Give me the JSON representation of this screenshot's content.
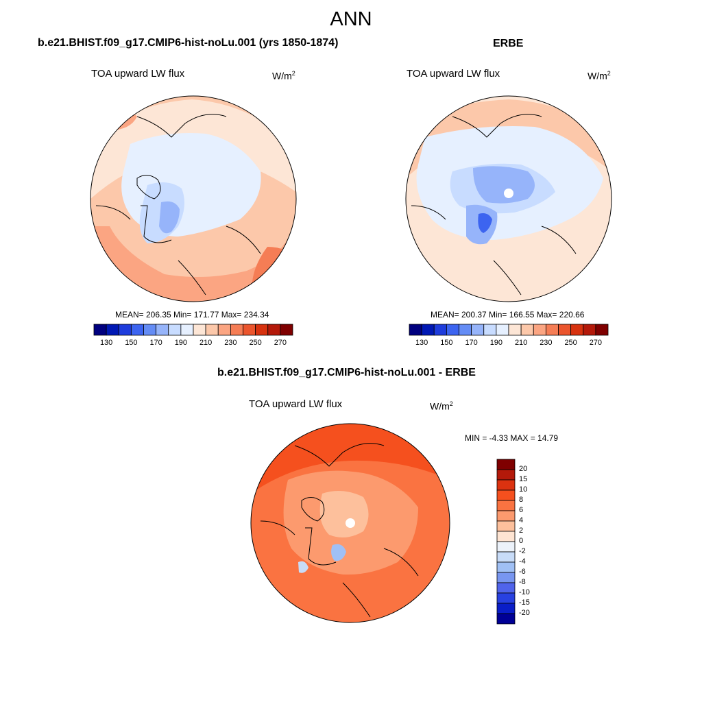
{
  "figure": {
    "title": "ANN"
  },
  "panels": {
    "model": {
      "title": "b.e21.BHIST.f09_g17.CMIP6-hist-noLu.001 (yrs 1850-1874)",
      "variable": "TOA upward LW flux",
      "units": "W/m",
      "units_sup": "2",
      "stats": "MEAN= 206.35  Min= 171.77  Max= 234.34",
      "stats_values": {
        "mean": 206.35,
        "min": 171.77,
        "max": 234.34
      }
    },
    "obs": {
      "title": "ERBE",
      "variable": "TOA upward LW flux",
      "units": "W/m",
      "units_sup": "2",
      "stats": "MEAN= 200.37  Min= 166.55  Max= 220.66",
      "stats_values": {
        "mean": 200.37,
        "min": 166.55,
        "max": 220.66
      }
    },
    "diff": {
      "title": "b.e21.BHIST.f09_g17.CMIP6-hist-noLu.001 - ERBE",
      "variable": "TOA upward LW flux",
      "units": "W/m",
      "units_sup": "2",
      "stats": "MIN =  -4.33 MAX =  14.79",
      "stats_values": {
        "min": -4.33,
        "max": 14.79
      }
    }
  },
  "colorbars": {
    "absolute": {
      "orientation": "horizontal",
      "colors": [
        "#00007f",
        "#0018b4",
        "#1e3cdc",
        "#3c64f0",
        "#648cf5",
        "#96b4fa",
        "#c8dcff",
        "#e6f0ff",
        "#fde6d6",
        "#fcc8aa",
        "#fba582",
        "#f57d55",
        "#eb552d",
        "#d7320f",
        "#b4190a",
        "#7f0000"
      ],
      "tick_labels": [
        "130",
        "150",
        "170",
        "190",
        "210",
        "230",
        "250",
        "270"
      ],
      "tick_positions": [
        1,
        3,
        5,
        7,
        9,
        11,
        13,
        15
      ]
    },
    "difference": {
      "orientation": "vertical",
      "colors": [
        "#7f0000",
        "#b4190a",
        "#dc3210",
        "#f5501e",
        "#fa7341",
        "#fc9a6e",
        "#fdc09c",
        "#fee4d2",
        "#ecf2fa",
        "#c8dcf8",
        "#a0c0f5",
        "#7896f0",
        "#5064eb",
        "#2841e1",
        "#0a1ec8",
        "#000096"
      ],
      "tick_labels": [
        "20",
        "15",
        "10",
        "8",
        "6",
        "4",
        "2",
        "0",
        "-2",
        "-4",
        "-6",
        "-8",
        "-10",
        "-15",
        "-20"
      ]
    }
  }
}
